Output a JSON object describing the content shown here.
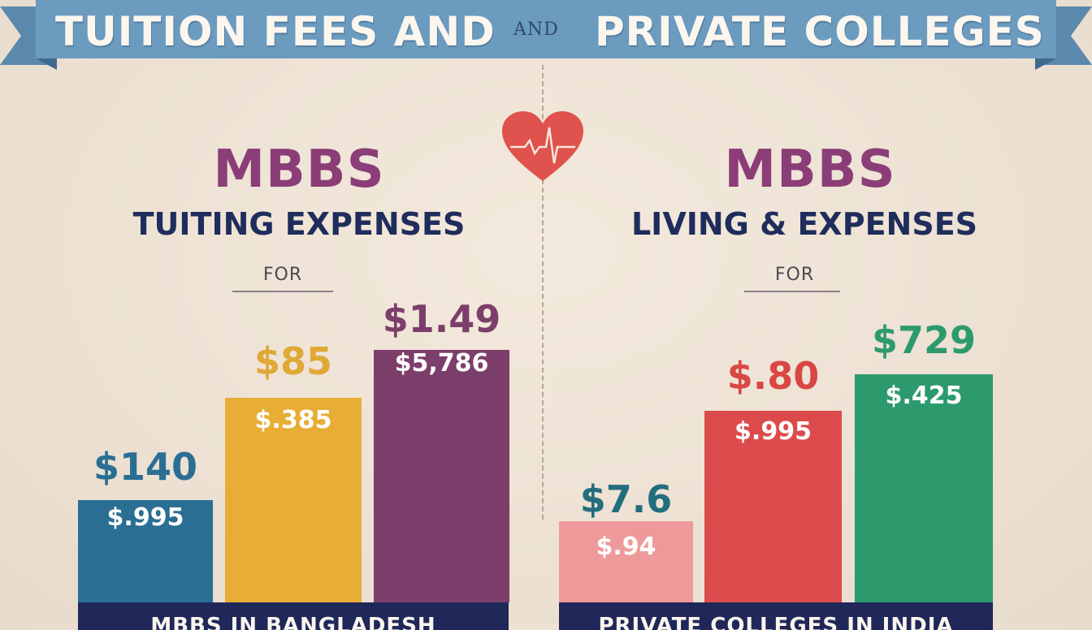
{
  "banner": {
    "left_text": "TUITION FEES AND",
    "and_text": "AND",
    "right_text": "PRIVATE COLLEGES",
    "color": "#6b9bbf"
  },
  "heart_icon": "heart-with-heartbeat",
  "chart_data": [
    {
      "type": "bar",
      "title": "MBBS",
      "subtitle": "TUITING EXPENSES",
      "for_label": "FOR",
      "category_label": "MBBS IN BANGLADESH",
      "bars": [
        {
          "top_label": "$140",
          "inner_label": "$.995",
          "color": "#2a6f93",
          "top_color": "#2a6f93"
        },
        {
          "top_label": "$85",
          "inner_label": "$.385",
          "color": "#e8ad35",
          "top_color": "#e0a936"
        },
        {
          "top_label": "$1.49",
          "inner_label": "$5,786",
          "color": "#7c3e6a",
          "top_color": "#7c3e6a"
        }
      ]
    },
    {
      "type": "bar",
      "title": "MBBS",
      "subtitle": "LIVING & EXPENSES",
      "for_label": "FOR",
      "category_label": "PRIVATE COLLEGES IN INDIA",
      "bars": [
        {
          "top_label": "$7.6",
          "inner_label": "$.94",
          "color": "#ee9a9a",
          "top_color": "#236e7e"
        },
        {
          "top_label": "$.80",
          "inner_label": "$.995",
          "color": "#dc4b4c",
          "top_color": "#d94744"
        },
        {
          "top_label": "$729",
          "inner_label": "$.425",
          "color": "#2d9a6d",
          "top_color": "#2d9a6d"
        }
      ]
    }
  ]
}
